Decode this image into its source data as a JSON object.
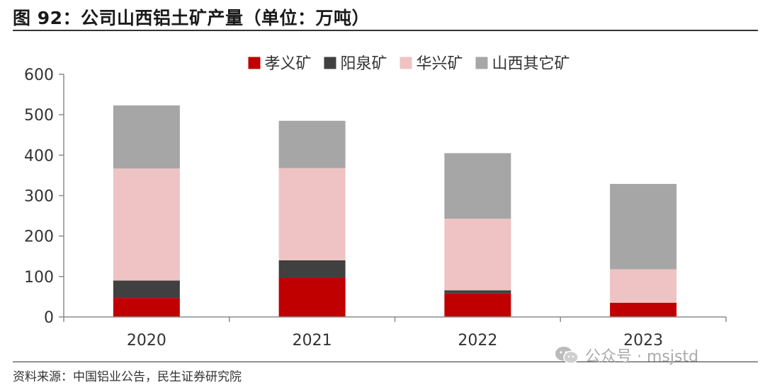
{
  "header": {
    "title": "图 92：公司山西铝土矿产量（单位：万吨）"
  },
  "footer": {
    "source": "资料来源：中国铝业公告，民生证券研究院",
    "watermark_text": "公众号 · msjstd",
    "watermark_icon": "wechat-icon"
  },
  "chart_data": {
    "type": "bar",
    "stacked": true,
    "categories": [
      "2020",
      "2021",
      "2022",
      "2023"
    ],
    "series": [
      {
        "name": "孝义矿",
        "color": "#c00000",
        "values": [
          47,
          97,
          58,
          35
        ]
      },
      {
        "name": "阳泉矿",
        "color": "#404040",
        "values": [
          43,
          43,
          8,
          0
        ]
      },
      {
        "name": "华兴矿",
        "color": "#efc3c3",
        "values": [
          277,
          228,
          177,
          83
        ]
      },
      {
        "name": "山西其它矿",
        "color": "#a6a6a6",
        "values": [
          156,
          117,
          162,
          211
        ]
      }
    ],
    "ylim": [
      0,
      600
    ],
    "yticks": [
      "0",
      "100",
      "200",
      "300",
      "400",
      "500",
      "600"
    ],
    "grid": false,
    "legend_position": "top-center"
  }
}
